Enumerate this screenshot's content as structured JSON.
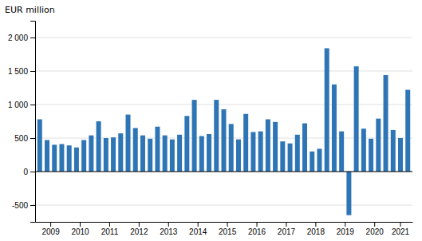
{
  "chart_data": {
    "type": "bar",
    "ylabel": "EUR million",
    "categories": [
      "2009",
      null,
      null,
      null,
      "2010",
      null,
      null,
      null,
      "2011",
      null,
      null,
      null,
      "2012",
      null,
      null,
      null,
      "2013",
      null,
      null,
      null,
      "2014",
      null,
      null,
      null,
      "2015",
      null,
      null,
      null,
      "2016",
      null,
      null,
      null,
      "2017",
      null,
      null,
      null,
      "2018",
      null,
      null,
      null,
      "2019",
      null,
      null,
      null,
      "2020",
      null,
      null,
      null,
      "2021",
      null,
      null
    ],
    "values": [
      780,
      470,
      400,
      410,
      390,
      360,
      470,
      540,
      750,
      500,
      510,
      570,
      850,
      650,
      540,
      490,
      670,
      540,
      480,
      550,
      830,
      1070,
      530,
      560,
      1070,
      930,
      710,
      480,
      860,
      590,
      600,
      780,
      740,
      450,
      420,
      550,
      720,
      300,
      340,
      1840,
      1300,
      600,
      -650,
      1570,
      640,
      490,
      790,
      1440,
      620,
      500,
      1220
    ],
    "color": "#2e75b6",
    "ylim": [
      -750,
      2250
    ],
    "yticks": [
      -500,
      0,
      500,
      {
        "value": 1000,
        "label": "1 000"
      },
      {
        "value": 1500,
        "label": "1 500"
      },
      {
        "value": 2000,
        "label": "2 000"
      }
    ],
    "grid": true
  }
}
